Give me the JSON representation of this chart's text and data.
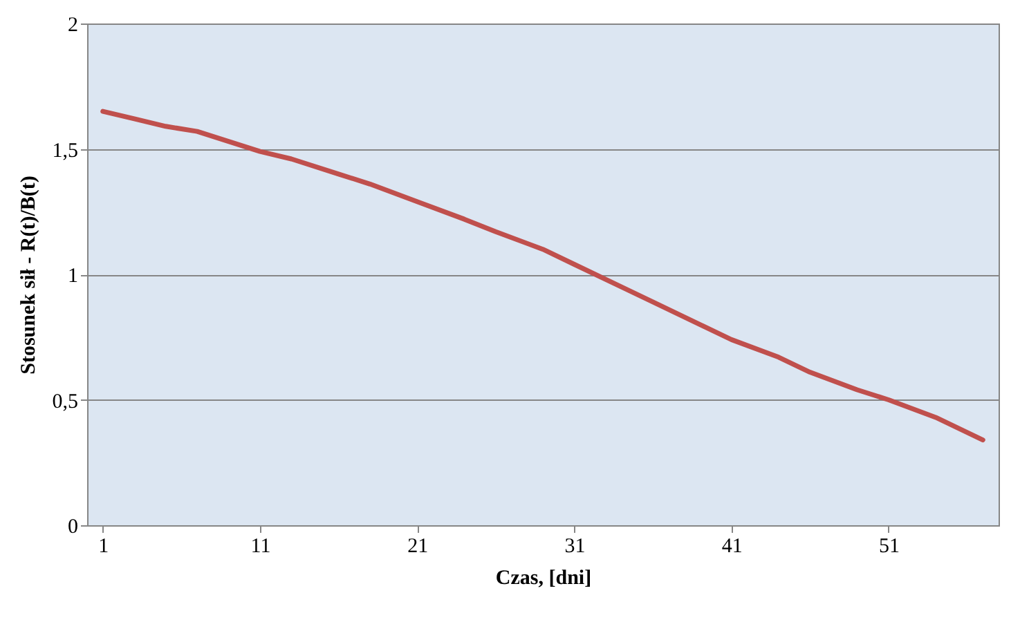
{
  "chart_data": {
    "type": "line",
    "xlabel": "Czas, [dni]",
    "ylabel": "Stosunek sił - R(t)/B(t)",
    "x": [
      1,
      3,
      5,
      7,
      9,
      11,
      13,
      16,
      18,
      21,
      24,
      26,
      29,
      31,
      34,
      36,
      39,
      41,
      44,
      46,
      49,
      51,
      54,
      57
    ],
    "series": [
      {
        "color": "#c0504d",
        "values": [
          1.65,
          1.62,
          1.59,
          1.57,
          1.53,
          1.49,
          1.46,
          1.4,
          1.36,
          1.29,
          1.22,
          1.17,
          1.1,
          1.04,
          0.95,
          0.89,
          0.8,
          0.74,
          0.67,
          0.61,
          0.54,
          0.5,
          0.43,
          0.34
        ]
      }
    ],
    "xlim": [
      0,
      58
    ],
    "xticks": [
      1,
      11,
      21,
      31,
      41,
      51
    ],
    "ylim": [
      0,
      2
    ],
    "yticks": [
      0,
      {
        "value": 0.5,
        "label": "0,5"
      },
      1,
      {
        "value": 1.5,
        "label": "1,5"
      },
      2
    ],
    "grid": "y",
    "marker": "none",
    "line_style": "solid"
  }
}
